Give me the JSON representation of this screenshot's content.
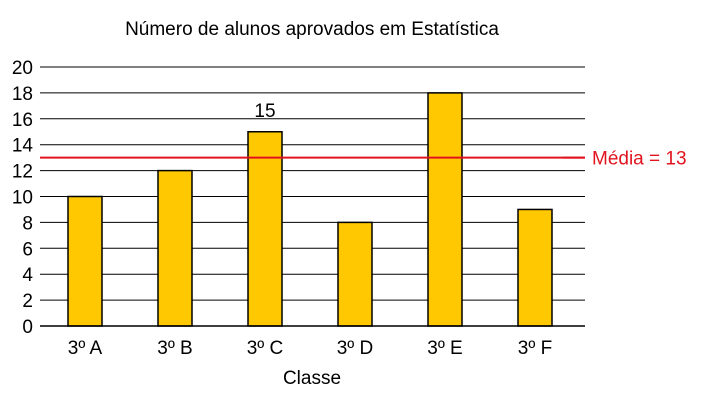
{
  "chart_data": {
    "type": "bar",
    "title": "Número de alunos aprovados em Estatística",
    "xlabel": "Classe",
    "ylabel": "",
    "categories": [
      "3º A",
      "3º B",
      "3º C",
      "3º D",
      "3º E",
      "3º F"
    ],
    "values": [
      10,
      12,
      15,
      8,
      18,
      9
    ],
    "ylim": [
      0,
      20
    ],
    "yticks": [
      "0",
      "2",
      "4",
      "6",
      "8",
      "10",
      "12",
      "14",
      "16",
      "18",
      "20"
    ],
    "grid": true,
    "data_labels": [
      {
        "category": "3º C",
        "text": "15"
      }
    ],
    "reference_line": {
      "value": 13,
      "label": "Média = 13",
      "color": "#e1141e"
    },
    "bar_color": "#ffc800",
    "edge_color": "#000000"
  }
}
